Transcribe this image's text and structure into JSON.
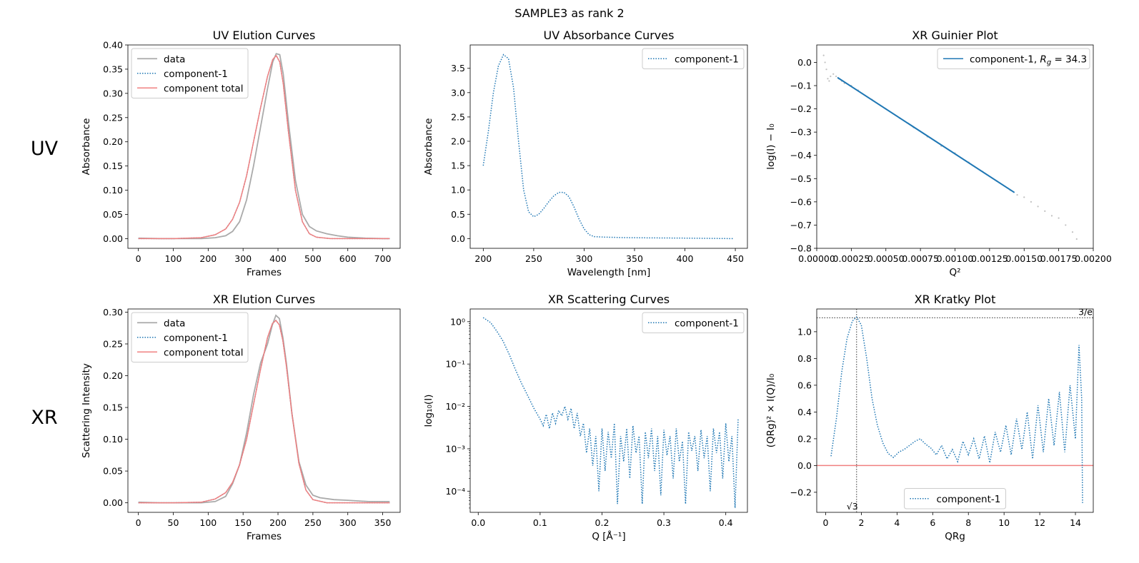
{
  "figure_title": "SAMPLE3 as rank 2",
  "row_labels": [
    "UV",
    "XR"
  ],
  "chart_data": [
    {
      "id": "uv_elution",
      "type": "line",
      "title": "UV Elution Curves",
      "xlabel": "Frames",
      "ylabel": "Absorbance",
      "xlim": [
        -30,
        750
      ],
      "ylim": [
        -0.02,
        0.4
      ],
      "xticks": [
        0,
        100,
        200,
        300,
        400,
        500,
        600,
        700
      ],
      "yticks": [
        0.0,
        0.05,
        0.1,
        0.15,
        0.2,
        0.25,
        0.3,
        0.35,
        0.4
      ],
      "ytick_labels": [
        "0.00",
        "0.05",
        "0.10",
        "0.15",
        "0.20",
        "0.25",
        "0.30",
        "0.35",
        "0.40"
      ],
      "legend": "upper-left",
      "series": [
        {
          "name": "data",
          "style": "solid",
          "color": "#aaaaaa",
          "x": [
            0,
            60,
            120,
            180,
            220,
            250,
            270,
            290,
            310,
            330,
            350,
            370,
            385,
            395,
            405,
            415,
            430,
            450,
            470,
            490,
            510,
            540,
            570,
            600,
            650,
            700,
            720
          ],
          "y": [
            0.001,
            0.0,
            0.0,
            0.0,
            0.002,
            0.006,
            0.015,
            0.035,
            0.08,
            0.15,
            0.23,
            0.31,
            0.365,
            0.382,
            0.38,
            0.34,
            0.24,
            0.12,
            0.05,
            0.025,
            0.016,
            0.01,
            0.006,
            0.003,
            0.001,
            0.0,
            0.0
          ]
        },
        {
          "name": "component-1",
          "style": "dotted",
          "color": "#1f77b4",
          "x": [
            0,
            100,
            180,
            220,
            250,
            270,
            290,
            310,
            330,
            350,
            370,
            385,
            395,
            405,
            415,
            430,
            450,
            470,
            490,
            510,
            550,
            600,
            700,
            720
          ],
          "y": [
            0.0,
            0.0,
            0.002,
            0.008,
            0.02,
            0.04,
            0.075,
            0.13,
            0.2,
            0.27,
            0.335,
            0.37,
            0.378,
            0.365,
            0.32,
            0.22,
            0.1,
            0.035,
            0.01,
            0.003,
            0.0,
            0.0,
            0.0,
            0.0
          ]
        },
        {
          "name": "component total",
          "style": "solid",
          "color": "#f08080",
          "x": [
            0,
            100,
            180,
            220,
            250,
            270,
            290,
            310,
            330,
            350,
            370,
            385,
            395,
            405,
            415,
            430,
            450,
            470,
            490,
            510,
            550,
            600,
            700,
            720
          ],
          "y": [
            0.0,
            0.0,
            0.002,
            0.008,
            0.02,
            0.04,
            0.075,
            0.13,
            0.2,
            0.27,
            0.335,
            0.37,
            0.378,
            0.365,
            0.32,
            0.22,
            0.1,
            0.035,
            0.01,
            0.003,
            0.0,
            0.0,
            0.0,
            0.0
          ]
        }
      ]
    },
    {
      "id": "uv_absorbance",
      "type": "line",
      "title": "UV Absorbance Curves",
      "xlabel": "Wavelength [nm]",
      "ylabel": "Absorbance",
      "xlim": [
        187,
        462
      ],
      "ylim": [
        -0.2,
        3.98
      ],
      "xticks": [
        200,
        250,
        300,
        350,
        400,
        450
      ],
      "yticks": [
        0.0,
        0.5,
        1.0,
        1.5,
        2.0,
        2.5,
        3.0,
        3.5
      ],
      "ytick_labels": [
        "0.0",
        "0.5",
        "1.0",
        "1.5",
        "2.0",
        "2.5",
        "3.0",
        "3.5"
      ],
      "legend": "upper-right",
      "series": [
        {
          "name": "component-1",
          "style": "dotted",
          "color": "#1f77b4",
          "x": [
            200,
            205,
            210,
            215,
            220,
            225,
            230,
            235,
            240,
            245,
            250,
            255,
            260,
            265,
            270,
            275,
            280,
            285,
            290,
            295,
            300,
            305,
            310,
            320,
            340,
            360,
            400,
            448
          ],
          "y": [
            1.5,
            2.2,
            3.0,
            3.55,
            3.78,
            3.7,
            3.1,
            2.0,
            1.0,
            0.55,
            0.45,
            0.5,
            0.62,
            0.76,
            0.88,
            0.95,
            0.95,
            0.86,
            0.65,
            0.4,
            0.2,
            0.08,
            0.04,
            0.03,
            0.02,
            0.015,
            0.01,
            0.0
          ]
        }
      ]
    },
    {
      "id": "xr_guinier",
      "type": "scatter",
      "title": "XR Guinier Plot",
      "xlabel": "Q²",
      "ylabel": "log(I) − I₀",
      "xlim": [
        0.0,
        0.002
      ],
      "ylim": [
        -0.8,
        0.075
      ],
      "xticks": [
        0.0,
        0.00025,
        0.0005,
        0.00075,
        0.001,
        0.00125,
        0.0015,
        0.00175,
        0.002
      ],
      "xtick_labels": [
        "0.00000",
        "0.00025",
        "0.00050",
        "0.00075",
        "0.00100",
        "0.00125",
        "0.00150",
        "0.00175",
        "0.00200"
      ],
      "yticks": [
        -0.8,
        -0.7,
        -0.6,
        -0.5,
        -0.4,
        -0.3,
        -0.2,
        -0.1,
        0.0
      ],
      "ytick_labels": [
        "−0.8",
        "−0.7",
        "−0.6",
        "−0.5",
        "−0.4",
        "−0.3",
        "−0.2",
        "−0.1",
        "0.0"
      ],
      "legend": "upper-right",
      "legend_label": "component-1, Rg = 34.3",
      "legend_label_parts": {
        "prefix": "component-1, ",
        "symbol": "R",
        "subscript": "g",
        "suffix": " = 34.3"
      },
      "rg": 34.3,
      "points": {
        "color": "#c0c0c0",
        "x": [
          5e-05,
          6e-05,
          7e-05,
          8e-05,
          9e-05,
          0.0001,
          0.00012,
          0.00014,
          0.00016,
          0.00018,
          0.0002,
          0.00025,
          0.0003,
          0.0004,
          0.0005,
          0.0006,
          0.0007,
          0.0008,
          0.0009,
          0.001,
          0.0011,
          0.0012,
          0.0013,
          0.0014,
          0.00145,
          0.0015,
          0.00155,
          0.0016,
          0.00165,
          0.0017,
          0.00175,
          0.0018,
          0.00185,
          0.00188
        ],
        "y": [
          0.03,
          0.0,
          -0.03,
          -0.07,
          -0.08,
          -0.06,
          -0.05,
          -0.06,
          -0.07,
          -0.08,
          -0.09,
          -0.1,
          -0.12,
          -0.16,
          -0.2,
          -0.24,
          -0.28,
          -0.32,
          -0.36,
          -0.39,
          -0.43,
          -0.47,
          -0.51,
          -0.55,
          -0.57,
          -0.58,
          -0.6,
          -0.62,
          -0.64,
          -0.66,
          -0.67,
          -0.7,
          -0.73,
          -0.76
        ]
      },
      "fit_line": {
        "color": "#1f77b4",
        "x": [
          0.00015,
          0.00143
        ],
        "y": [
          -0.065,
          -0.56
        ]
      }
    },
    {
      "id": "xr_elution",
      "type": "line",
      "title": "XR Elution Curves",
      "xlabel": "Frames",
      "ylabel": "Scattering Intensity",
      "xlim": [
        -15,
        375
      ],
      "ylim": [
        -0.015,
        0.305
      ],
      "xticks": [
        0,
        50,
        100,
        150,
        200,
        250,
        300,
        350
      ],
      "yticks": [
        0.0,
        0.05,
        0.1,
        0.15,
        0.2,
        0.25,
        0.3
      ],
      "ytick_labels": [
        "0.00",
        "0.05",
        "0.10",
        "0.15",
        "0.20",
        "0.25",
        "0.30"
      ],
      "legend": "upper-left",
      "series": [
        {
          "name": "data",
          "style": "solid",
          "color": "#aaaaaa",
          "x": [
            0,
            30,
            60,
            90,
            110,
            125,
            135,
            145,
            155,
            165,
            175,
            185,
            192,
            197,
            202,
            207,
            212,
            220,
            230,
            240,
            250,
            260,
            280,
            300,
            330,
            360
          ],
          "y": [
            0.001,
            0.0,
            0.0,
            0.0,
            0.002,
            0.01,
            0.03,
            0.06,
            0.11,
            0.17,
            0.22,
            0.25,
            0.28,
            0.295,
            0.29,
            0.26,
            0.22,
            0.14,
            0.065,
            0.028,
            0.012,
            0.008,
            0.005,
            0.004,
            0.002,
            0.002
          ]
        },
        {
          "name": "component-1",
          "style": "dotted",
          "color": "#1f77b4",
          "x": [
            0,
            50,
            90,
            110,
            125,
            135,
            145,
            155,
            165,
            175,
            185,
            192,
            197,
            202,
            207,
            212,
            220,
            230,
            240,
            250,
            270,
            300,
            360
          ],
          "y": [
            0.0,
            0.0,
            0.001,
            0.006,
            0.016,
            0.032,
            0.06,
            0.1,
            0.155,
            0.21,
            0.26,
            0.282,
            0.287,
            0.28,
            0.255,
            0.215,
            0.14,
            0.062,
            0.02,
            0.005,
            0.0,
            0.0,
            0.0
          ]
        },
        {
          "name": "component total",
          "style": "solid",
          "color": "#f08080",
          "x": [
            0,
            50,
            90,
            110,
            125,
            135,
            145,
            155,
            165,
            175,
            185,
            192,
            197,
            202,
            207,
            212,
            220,
            230,
            240,
            250,
            270,
            300,
            360
          ],
          "y": [
            0.0,
            0.0,
            0.001,
            0.006,
            0.016,
            0.032,
            0.06,
            0.1,
            0.155,
            0.21,
            0.26,
            0.282,
            0.287,
            0.28,
            0.255,
            0.215,
            0.14,
            0.062,
            0.02,
            0.005,
            0.0,
            0.0,
            0.0
          ]
        }
      ]
    },
    {
      "id": "xr_scattering",
      "type": "line",
      "title": "XR Scattering Curves",
      "xlabel": "Q [Å⁻¹]",
      "ylabel": "log₁₀(I)",
      "yscale": "log",
      "xlim": [
        -0.013,
        0.435
      ],
      "ylim_log10": [
        -4.5,
        0.3
      ],
      "xticks": [
        0.0,
        0.1,
        0.2,
        0.3,
        0.4
      ],
      "xtick_labels": [
        "0.0",
        "0.1",
        "0.2",
        "0.3",
        "0.4"
      ],
      "yticks_log10": [
        -4,
        -3,
        -2,
        -1,
        0
      ],
      "ytick_labels": [
        "10⁻⁴",
        "10⁻³",
        "10⁻²",
        "10⁻¹",
        "10⁰"
      ],
      "legend": "upper-right",
      "series": [
        {
          "name": "component-1",
          "style": "dotted",
          "color": "#1f77b4",
          "x": [
            0.008,
            0.02,
            0.03,
            0.04,
            0.05,
            0.06,
            0.07,
            0.08,
            0.09,
            0.1,
            0.105,
            0.11,
            0.115,
            0.12,
            0.125,
            0.13,
            0.135,
            0.14,
            0.145,
            0.15,
            0.155,
            0.16,
            0.165,
            0.17,
            0.175,
            0.18,
            0.185,
            0.19,
            0.195,
            0.2,
            0.205,
            0.21,
            0.215,
            0.22,
            0.225,
            0.23,
            0.235,
            0.24,
            0.245,
            0.25,
            0.255,
            0.26,
            0.265,
            0.27,
            0.275,
            0.28,
            0.285,
            0.29,
            0.295,
            0.3,
            0.305,
            0.31,
            0.315,
            0.32,
            0.325,
            0.33,
            0.335,
            0.34,
            0.345,
            0.35,
            0.355,
            0.36,
            0.365,
            0.37,
            0.375,
            0.38,
            0.385,
            0.39,
            0.395,
            0.4,
            0.405,
            0.41,
            0.415,
            0.42
          ],
          "y": [
            1.25,
            0.95,
            0.6,
            0.35,
            0.17,
            0.075,
            0.035,
            0.018,
            0.009,
            0.005,
            0.0035,
            0.0065,
            0.003,
            0.007,
            0.004,
            0.008,
            0.006,
            0.01,
            0.005,
            0.009,
            0.003,
            0.007,
            0.002,
            0.004,
            0.0008,
            0.003,
            0.0004,
            0.002,
            0.0001,
            0.003,
            0.0003,
            0.0025,
            0.0006,
            0.004,
            5e-05,
            0.002,
            0.0005,
            0.003,
            0.0002,
            0.0035,
            0.0008,
            0.002,
            5e-05,
            0.0025,
            0.0006,
            0.003,
            0.0003,
            0.002,
            8e-05,
            0.0028,
            0.0007,
            0.002,
            0.0002,
            0.003,
            0.0005,
            0.0015,
            5e-05,
            0.0025,
            0.0009,
            0.002,
            0.0003,
            0.0028,
            0.0006,
            0.002,
            0.0001,
            0.003,
            0.0008,
            0.0025,
            0.0002,
            0.004,
            0.0005,
            0.002,
            4e-05,
            0.005
          ]
        }
      ]
    },
    {
      "id": "xr_kratky",
      "type": "line",
      "title": "XR Kratky Plot",
      "xlabel": "QRg",
      "ylabel": "(QRg)² × I(Q)/I₀",
      "xlim": [
        -0.5,
        15.0
      ],
      "ylim": [
        -0.35,
        1.17
      ],
      "xticks": [
        0,
        2,
        4,
        6,
        8,
        10,
        12,
        14
      ],
      "xtick_labels": [
        "0",
        "2",
        "4",
        "6",
        "8",
        "10",
        "12",
        "14"
      ],
      "yticks": [
        -0.2,
        0.0,
        0.2,
        0.4,
        0.6,
        0.8,
        1.0
      ],
      "ytick_labels": [
        "−0.2",
        "0.0",
        "0.2",
        "0.4",
        "0.6",
        "0.8",
        "1.0"
      ],
      "legend": "lower-center",
      "hline_value": 1.104,
      "hline_label": "3/e",
      "vline_value": 1.732,
      "vline_label": "√3",
      "zero_line_color": "#f08080",
      "series": [
        {
          "name": "component-1",
          "style": "dotted",
          "color": "#1f77b4",
          "x": [
            0.3,
            0.6,
            0.9,
            1.2,
            1.5,
            1.73,
            2.0,
            2.3,
            2.6,
            2.9,
            3.2,
            3.5,
            3.8,
            4.1,
            4.4,
            4.7,
            5.0,
            5.3,
            5.6,
            5.9,
            6.2,
            6.5,
            6.8,
            7.1,
            7.4,
            7.7,
            8.0,
            8.3,
            8.6,
            8.9,
            9.2,
            9.5,
            9.8,
            10.1,
            10.4,
            10.7,
            11.0,
            11.3,
            11.6,
            11.9,
            12.2,
            12.5,
            12.8,
            13.1,
            13.4,
            13.7,
            14.0,
            14.2,
            14.35,
            14.4
          ],
          "y": [
            0.07,
            0.35,
            0.7,
            0.95,
            1.08,
            1.11,
            1.05,
            0.8,
            0.5,
            0.3,
            0.17,
            0.09,
            0.06,
            0.1,
            0.12,
            0.15,
            0.18,
            0.2,
            0.16,
            0.13,
            0.08,
            0.15,
            0.05,
            0.12,
            0.03,
            0.18,
            0.08,
            0.2,
            0.05,
            0.22,
            0.02,
            0.25,
            0.1,
            0.3,
            0.08,
            0.35,
            0.12,
            0.4,
            0.05,
            0.45,
            0.1,
            0.5,
            0.15,
            0.55,
            0.1,
            0.6,
            0.2,
            0.9,
            0.5,
            -0.28
          ]
        }
      ]
    }
  ]
}
